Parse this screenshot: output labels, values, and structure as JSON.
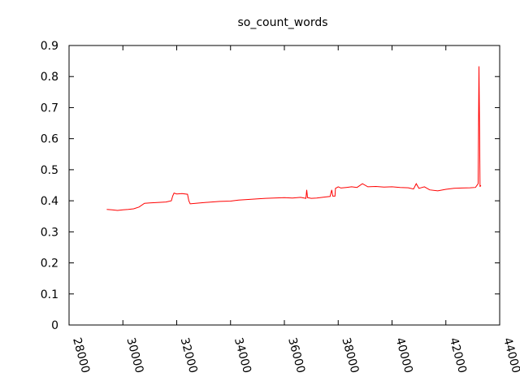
{
  "chart_data": {
    "type": "line",
    "title": "so_count_words",
    "xlabel": "",
    "ylabel": "",
    "xlim": [
      28000,
      44000
    ],
    "ylim": [
      0,
      0.9
    ],
    "xticks": [
      "28000",
      "30000",
      "32000",
      "34000",
      "36000",
      "38000",
      "40000",
      "42000",
      "44000"
    ],
    "yticks": [
      "0",
      "0.1",
      "0.2",
      "0.3",
      "0.4",
      "0.5",
      "0.6",
      "0.7",
      "0.8",
      "0.9"
    ],
    "grid": false,
    "legend": "none",
    "series_color": "#ff0000",
    "series": [
      {
        "x": [
          29400,
          29600,
          29800,
          30000,
          30200,
          30400,
          30600,
          30800,
          31000,
          31200,
          31400,
          31600,
          31800,
          31850,
          31900,
          32000,
          32200,
          32400,
          32450,
          32500,
          32700,
          33000,
          33300,
          33600,
          34000,
          34300,
          34600,
          35000,
          35300,
          35600,
          36000,
          36300,
          36600,
          36800,
          36830,
          36860,
          37000,
          37200,
          37500,
          37700,
          37760,
          37800,
          37880,
          37900,
          38000,
          38100,
          38300,
          38500,
          38700,
          38900,
          39100,
          39400,
          39700,
          40000,
          40300,
          40600,
          40800,
          40900,
          41000,
          41200,
          41400,
          41700,
          42000,
          42300,
          42600,
          42900,
          43100,
          43200,
          43230,
          43250,
          43270,
          43300
        ],
        "values": [
          0.372,
          0.371,
          0.369,
          0.371,
          0.372,
          0.374,
          0.38,
          0.392,
          0.393,
          0.394,
          0.395,
          0.396,
          0.4,
          0.415,
          0.425,
          0.422,
          0.423,
          0.421,
          0.4,
          0.39,
          0.392,
          0.394,
          0.396,
          0.398,
          0.399,
          0.402,
          0.404,
          0.406,
          0.408,
          0.409,
          0.41,
          0.409,
          0.411,
          0.408,
          0.435,
          0.41,
          0.408,
          0.409,
          0.412,
          0.414,
          0.435,
          0.415,
          0.415,
          0.44,
          0.445,
          0.441,
          0.443,
          0.445,
          0.443,
          0.455,
          0.445,
          0.446,
          0.444,
          0.445,
          0.443,
          0.442,
          0.438,
          0.455,
          0.44,
          0.445,
          0.435,
          0.432,
          0.437,
          0.44,
          0.441,
          0.442,
          0.443,
          0.455,
          0.833,
          0.64,
          0.445,
          0.45
        ]
      }
    ]
  }
}
